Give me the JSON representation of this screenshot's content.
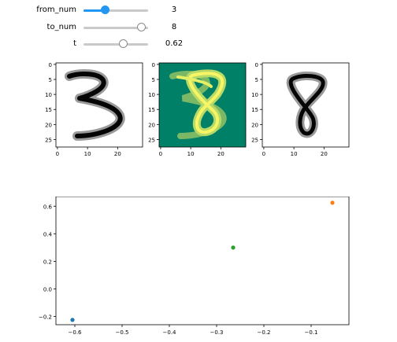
{
  "widgets": {
    "from_num": {
      "label": "from_num",
      "value": "3",
      "fraction": 0.34,
      "color": "#2196f3"
    },
    "to_num": {
      "label": "to_num",
      "value": "8",
      "fraction": 0.9
    },
    "t": {
      "label": "t",
      "value": "0.62",
      "fraction": 0.62
    }
  },
  "images": {
    "colormap_left": "gray_r",
    "colormap_middle": "summer",
    "colormap_right": "gray_r",
    "y_ticks": [
      "0",
      "5",
      "10",
      "15",
      "20",
      "25"
    ],
    "x_ticks": [
      "0",
      "10",
      "20"
    ]
  },
  "chart_data": {
    "type": "scatter",
    "title": "",
    "xlabel": "",
    "ylabel": "",
    "xlim": [
      -0.64,
      -0.02
    ],
    "ylim": [
      -0.26,
      0.67
    ],
    "x_ticks": [
      -0.6,
      -0.5,
      -0.4,
      -0.3,
      -0.2,
      -0.1
    ],
    "x_tick_labels": [
      "−0.6",
      "−0.5",
      "−0.4",
      "−0.3",
      "−0.2",
      "−0.1"
    ],
    "y_ticks": [
      -0.2,
      0.0,
      0.2,
      0.4,
      0.6
    ],
    "y_tick_labels": [
      "−0.2",
      "0.0",
      "0.2",
      "0.4",
      "0.6"
    ],
    "grid": false,
    "points": [
      {
        "x": -0.605,
        "y": -0.225,
        "color": "#1f77b4"
      },
      {
        "x": -0.055,
        "y": 0.625,
        "color": "#ff7f0e"
      },
      {
        "x": -0.265,
        "y": 0.3,
        "color": "#2ca02c"
      }
    ]
  }
}
